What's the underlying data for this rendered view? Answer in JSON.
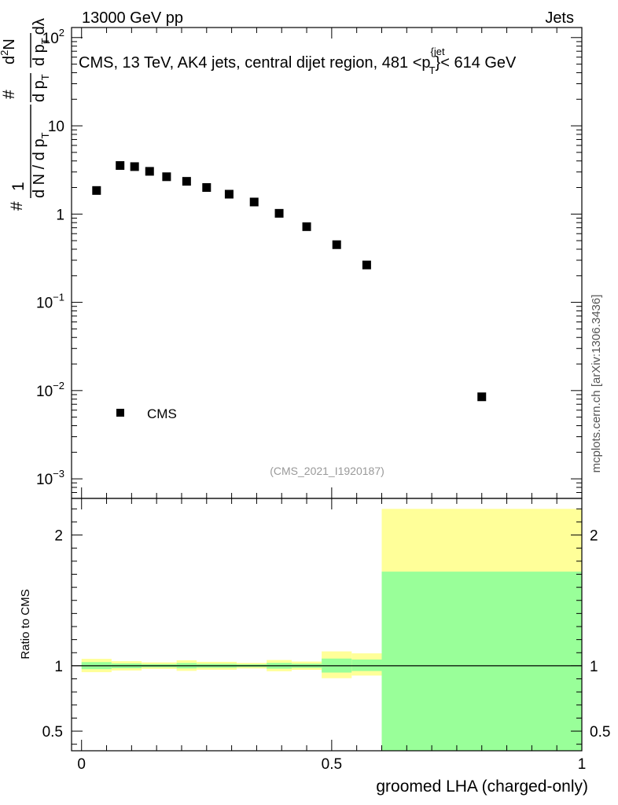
{
  "header": {
    "left": "13000 GeV pp",
    "right": "Jets",
    "side_label": "mcplots.cern.ch [arXiv:1306.3436]",
    "analysis_id": "(CMS_2021_I1920187)"
  },
  "colors": {
    "marker": "#000000",
    "band_outer": "#ffff99",
    "band_inner": "#99ff99",
    "analysis_id": "#999999"
  },
  "chart_data": [
    {
      "type": "scatter",
      "title": "CMS, 13 TeV, AK4 jets, central dijet region, 481 <p",
      "title_sup": "{jet",
      "title_sub": "T",
      "title_tail": "}< 614 GeV",
      "ylabel_parts": {
        "frac_num": "1",
        "frac_den": "d N / d p",
        "frac_den_sub": "T",
        "hash": "#",
        "num2": "#",
        "dden": "d p",
        "dden_sub": "T",
        "d2n": "d",
        "d2n_sup": "2",
        "d2n_tail": "N",
        "dlambda": "dλ"
      },
      "yscale": "log",
      "ylim": [
        0.0006,
        130
      ],
      "xlim": [
        -0.02,
        1.0
      ],
      "yticks": [
        {
          "base": "10",
          "exp": "2",
          "value": 100
        },
        {
          "base": "10",
          "exp": "",
          "value": 10
        },
        {
          "base": "1",
          "exp": "",
          "value": 1
        },
        {
          "base": "10",
          "exp": "−1",
          "value": 0.1
        },
        {
          "base": "10",
          "exp": "−2",
          "value": 0.01
        },
        {
          "base": "10",
          "exp": "−3",
          "value": 0.001
        }
      ],
      "series": [
        {
          "name": "CMS",
          "x": [
            0.03,
            0.077,
            0.106,
            0.136,
            0.17,
            0.21,
            0.25,
            0.295,
            0.345,
            0.395,
            0.45,
            0.51,
            0.57,
            0.8
          ],
          "y": [
            1.85,
            3.55,
            3.45,
            3.05,
            2.65,
            2.35,
            2.0,
            1.68,
            1.37,
            1.02,
            0.72,
            0.45,
            0.265,
            0.0085
          ]
        }
      ],
      "legend": "CMS"
    },
    {
      "type": "area",
      "ylabel": "Ratio to CMS",
      "xlabel": "groomed LHA (charged-only)",
      "xlim": [
        -0.02,
        1.0
      ],
      "ylim": [
        0.35,
        2.28
      ],
      "xticks": [
        {
          "label": "0",
          "value": 0
        },
        {
          "label": "0.5",
          "value": 0.5
        },
        {
          "label": "1",
          "value": 1
        }
      ],
      "yticks": [
        {
          "label": "2",
          "value": 2
        },
        {
          "label": "1",
          "value": 1
        },
        {
          "label": "0.5",
          "value": 0.5
        }
      ],
      "bins": [
        {
          "x0": 0.0,
          "x1": 0.06,
          "outer": [
            0.951,
            1.053
          ],
          "inner": [
            0.974,
            1.028
          ]
        },
        {
          "x0": 0.06,
          "x1": 0.12,
          "outer": [
            0.964,
            1.035
          ],
          "inner": [
            0.981,
            1.018
          ]
        },
        {
          "x0": 0.12,
          "x1": 0.19,
          "outer": [
            0.976,
            1.026
          ],
          "inner": [
            0.988,
            1.013
          ]
        },
        {
          "x0": 0.19,
          "x1": 0.23,
          "outer": [
            0.961,
            1.042
          ],
          "inner": [
            0.98,
            1.021
          ]
        },
        {
          "x0": 0.23,
          "x1": 0.31,
          "outer": [
            0.97,
            1.03
          ],
          "inner": [
            0.985,
            1.015
          ]
        },
        {
          "x0": 0.31,
          "x1": 0.37,
          "outer": [
            0.979,
            1.022
          ],
          "inner": [
            0.99,
            1.011
          ]
        },
        {
          "x0": 0.37,
          "x1": 0.42,
          "outer": [
            0.958,
            1.044
          ],
          "inner": [
            0.978,
            1.022
          ]
        },
        {
          "x0": 0.42,
          "x1": 0.48,
          "outer": [
            0.969,
            1.032
          ],
          "inner": [
            0.984,
            1.016
          ]
        },
        {
          "x0": 0.48,
          "x1": 0.54,
          "outer": [
            0.905,
            1.11
          ],
          "inner": [
            0.948,
            1.055
          ]
        },
        {
          "x0": 0.54,
          "x1": 0.6,
          "outer": [
            0.925,
            1.095
          ],
          "inner": [
            0.96,
            1.048
          ]
        },
        {
          "x0": 0.6,
          "x1": 1.0,
          "outer": [
            0.35,
            2.2
          ],
          "inner": [
            0.35,
            1.72
          ]
        }
      ],
      "reference_line": 1
    }
  ]
}
